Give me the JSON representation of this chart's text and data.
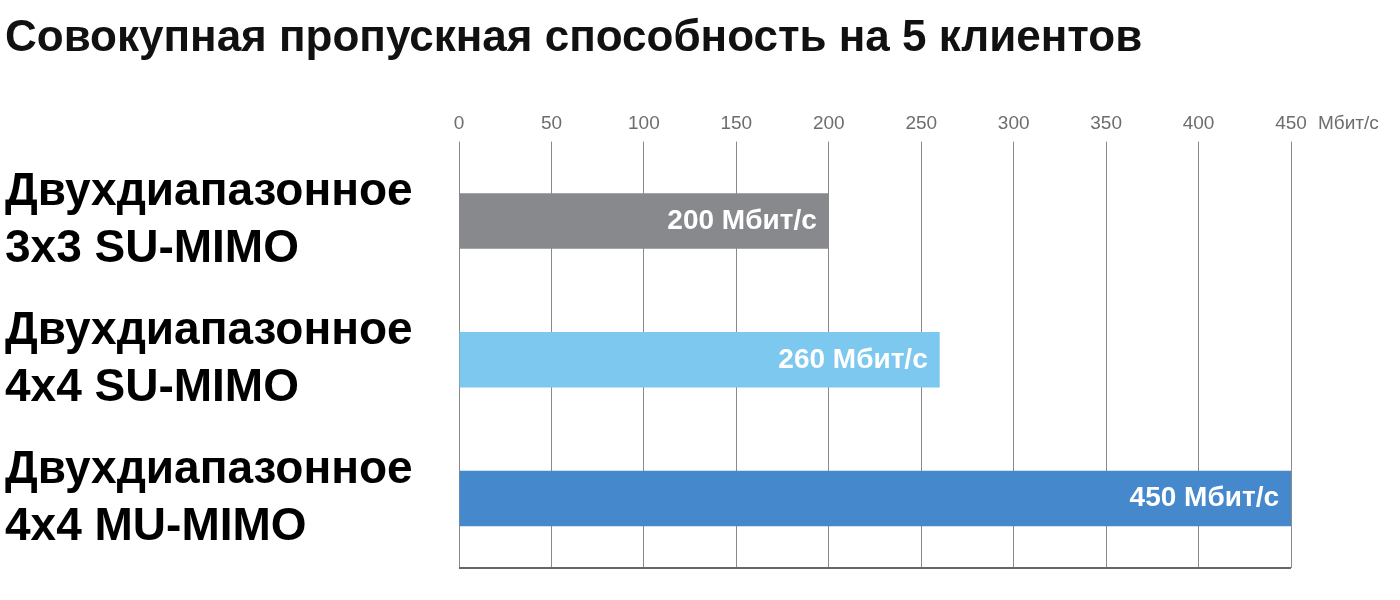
{
  "chart_data": {
    "type": "bar",
    "orientation": "horizontal",
    "title": "Совокупная пропускная способность на 5 клиентов",
    "xlabel": "Мбит/с",
    "categories": [
      "Двухдиапазонное 3x3 SU-MIMO",
      "Двухдиапазонное 4x4 SU-MIMO",
      "Двухдиапазонное 4x4 MU-MIMO"
    ],
    "values": [
      200,
      260,
      450
    ],
    "colors": [
      "#88898c",
      "#7cc8ee",
      "#4589cc"
    ],
    "value_labels": [
      "200 Мбит/с",
      "260 Мбит/с",
      "450 Мбит/с"
    ],
    "xlim": [
      0,
      450
    ],
    "xticks": [
      0,
      50,
      100,
      150,
      200,
      250,
      300,
      350,
      400,
      450
    ],
    "grid": "x"
  }
}
